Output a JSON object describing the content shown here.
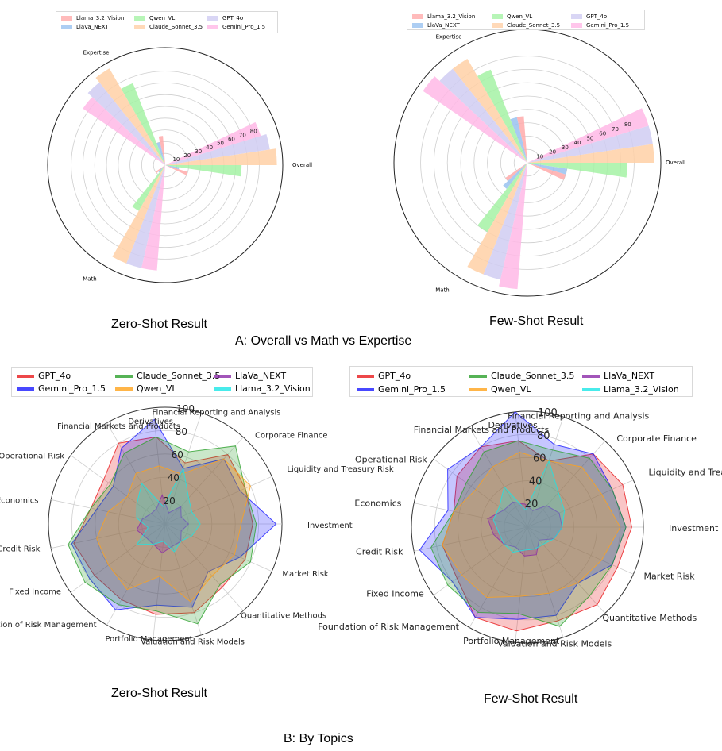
{
  "captions": {
    "topLeft": "Zero-Shot Result",
    "topRight": "Few-Shot Result",
    "sectionA": "A: Overall vs Math vs Expertise",
    "bottomLeft": "Zero-Shot Result",
    "bottomRight": "Few-Shot Result",
    "sectionB": "B: By Topics"
  },
  "chart_data": [
    {
      "type": "polar-bar",
      "panel": "A-zero-shot",
      "categories": [
        "Overall",
        "Math",
        "Expertise"
      ],
      "series": [
        {
          "name": "Llama_3.2_Vision",
          "color": "#ffaaaa",
          "values": [
            20,
            10,
            25
          ]
        },
        {
          "name": "LlaVa_NEXT",
          "color": "#99c2f0",
          "values": [
            12,
            8,
            20
          ]
        },
        {
          "name": "Qwen_VL",
          "color": "#a5f2a5",
          "values": [
            65,
            45,
            75
          ]
        },
        {
          "name": "Claude_Sonnet_3.5",
          "color": "#ffd0a6",
          "values": [
            95,
            90,
            95
          ]
        },
        {
          "name": "GPT_4o",
          "color": "#d0ccf2",
          "values": [
            90,
            90,
            90
          ]
        },
        {
          "name": "Gemini_Pro_1.5",
          "color": "#ffb8e6",
          "values": [
            85,
            90,
            85
          ]
        }
      ],
      "radial_ticks": [
        10,
        20,
        30,
        40,
        50,
        60,
        70,
        80
      ],
      "rmax": 100,
      "legend_position": "top"
    },
    {
      "type": "polar-bar",
      "panel": "A-few-shot",
      "categories": [
        "Overall",
        "Math",
        "Expertise"
      ],
      "series": [
        {
          "name": "Llama_3.2_Vision",
          "color": "#ffaaaa",
          "values": [
            30,
            20,
            35
          ]
        },
        {
          "name": "LlaVa_NEXT",
          "color": "#99c2f0",
          "values": [
            30,
            25,
            35
          ]
        },
        {
          "name": "Qwen_VL",
          "color": "#a5f2a5",
          "values": [
            75,
            60,
            75
          ]
        },
        {
          "name": "Claude_Sonnet_3.5",
          "color": "#ffd0a6",
          "values": [
            95,
            90,
            90
          ]
        },
        {
          "name": "GPT_4o",
          "color": "#d0ccf2",
          "values": [
            95,
            90,
            90
          ]
        },
        {
          "name": "Gemini_Pro_1.5",
          "color": "#ffb8e6",
          "values": [
            95,
            95,
            95
          ]
        }
      ],
      "radial_ticks": [
        10,
        20,
        30,
        40,
        50,
        60,
        70,
        80
      ],
      "rmax": 100,
      "legend_position": "top"
    },
    {
      "type": "radar",
      "panel": "B-zero-shot",
      "categories": [
        "Investment",
        "Market Risk",
        "Quantitative Methods",
        "Valuation and Risk Models",
        "Portfolio Management",
        "Foundation of Risk Management",
        "Fixed Income",
        "Credit Risk",
        "Economics",
        "Operational Risk",
        "Financial Markets and Products",
        "Derivatives",
        "Financial Reporting and Analysis",
        "Corporate Finance",
        "Liquidity and Treasury Risk"
      ],
      "series": [
        {
          "name": "GPT_4o",
          "color": "#e8191b",
          "values": [
            75,
            75,
            73,
            80,
            78,
            75,
            75,
            80,
            65,
            65,
            80,
            75,
            55,
            80,
            75
          ]
        },
        {
          "name": "Gemini_Pro_1.5",
          "color": "#1a1aff",
          "values": [
            95,
            70,
            55,
            75,
            70,
            85,
            80,
            82,
            60,
            55,
            75,
            90,
            50,
            75,
            70
          ]
        },
        {
          "name": "Claude_Sonnet_3.5",
          "color": "#2ca02c",
          "values": [
            78,
            80,
            70,
            90,
            75,
            80,
            85,
            85,
            65,
            58,
            70,
            75,
            65,
            90,
            75
          ]
        },
        {
          "name": "Qwen_VL",
          "color": "#ffa31a",
          "values": [
            65,
            65,
            60,
            70,
            45,
            65,
            60,
            60,
            50,
            40,
            50,
            50,
            45,
            75,
            80
          ]
        },
        {
          "name": "LlaVa_NEXT",
          "color": "#8b2aa8",
          "values": [
            20,
            15,
            20,
            20,
            25,
            20,
            20,
            25,
            20,
            15,
            15,
            25,
            10,
            20,
            15
          ]
        },
        {
          "name": "Llama_3.2_Vision",
          "color": "#1ae6e6",
          "values": [
            30,
            25,
            20,
            25,
            15,
            20,
            30,
            15,
            25,
            30,
            40,
            15,
            50,
            30,
            25
          ]
        }
      ],
      "radial_ticks": [
        20,
        40,
        60,
        80,
        100
      ],
      "rmax": 100,
      "legend_position": "top"
    },
    {
      "type": "radar",
      "panel": "B-few-shot",
      "categories": [
        "Investment",
        "Market Risk",
        "Quantitative Methods",
        "Valuation and Risk Models",
        "Portfolio Management",
        "Foundation of Risk Management",
        "Fixed Income",
        "Credit Risk",
        "Economics",
        "Operational Risk",
        "Financial Markets and Products",
        "Derivatives",
        "Financial Reporting and Analysis",
        "Corporate Finance",
        "Liquidity and Treasury Risk"
      ],
      "series": [
        {
          "name": "GPT_4o",
          "color": "#e8191b",
          "values": [
            90,
            85,
            90,
            85,
            90,
            90,
            75,
            75,
            65,
            75,
            80,
            75,
            60,
            85,
            90
          ]
        },
        {
          "name": "Gemini_Pro_1.5",
          "color": "#1a1aff",
          "values": [
            85,
            80,
            65,
            80,
            80,
            90,
            80,
            95,
            70,
            85,
            80,
            100,
            75,
            85,
            80
          ]
        },
        {
          "name": "Claude_Sonnet_3.5",
          "color": "#2ca02c",
          "values": [
            85,
            80,
            80,
            90,
            75,
            85,
            85,
            85,
            65,
            65,
            75,
            75,
            70,
            80,
            80
          ]
        },
        {
          "name": "Qwen_VL",
          "color": "#ffa31a",
          "values": [
            80,
            70,
            65,
            60,
            60,
            70,
            70,
            75,
            65,
            55,
            60,
            65,
            60,
            70,
            70
          ]
        },
        {
          "name": "LlaVa_NEXT",
          "color": "#8b2aa8",
          "values": [
            30,
            25,
            15,
            25,
            25,
            20,
            25,
            30,
            35,
            25,
            25,
            20,
            15,
            25,
            30
          ]
        },
        {
          "name": "Llama_3.2_Vision",
          "color": "#1ae6e6",
          "values": [
            30,
            25,
            20,
            20,
            20,
            25,
            25,
            25,
            30,
            30,
            40,
            15,
            60,
            40,
            35
          ]
        }
      ],
      "radial_ticks": [
        20,
        40,
        60,
        80,
        100
      ],
      "rmax": 100,
      "legend_position": "top"
    }
  ]
}
